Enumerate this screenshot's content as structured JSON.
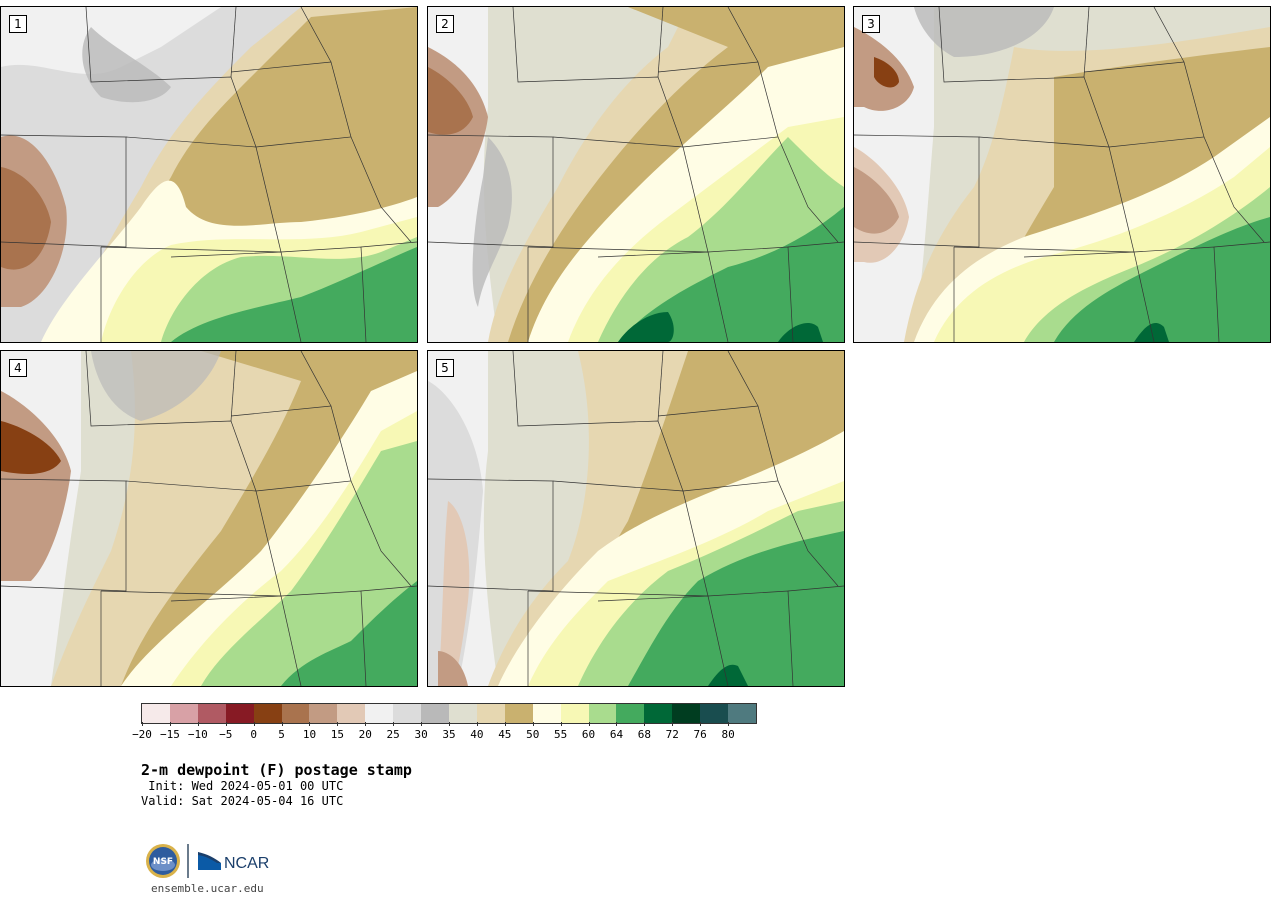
{
  "panels": [
    {
      "label": "1",
      "style": "a"
    },
    {
      "label": "2",
      "style": "b"
    },
    {
      "label": "3",
      "style": "c"
    },
    {
      "label": "4",
      "style": "d"
    },
    {
      "label": "5",
      "style": "e"
    }
  ],
  "colorbar": {
    "colors": [
      "#f6eaea",
      "#d8a1a6",
      "#b05a63",
      "#871a24",
      "#874013",
      "#a9734e",
      "#c29b83",
      "#e2c9b6",
      "#f1f1f1",
      "#dcdcdc",
      "#b9b9b9",
      "#dfdfd0",
      "#e6d7b1",
      "#c9b16f",
      "#fffde5",
      "#f7f8b5",
      "#a9dc8e",
      "#44aa5e",
      "#006837",
      "#003d20",
      "#194d4f",
      "#4f7a7f"
    ],
    "tick_labels": [
      "-20",
      "-15",
      "-10",
      "-5",
      "0",
      "5",
      "10",
      "15",
      "20",
      "25",
      "30",
      "35",
      "40",
      "45",
      "50",
      "55",
      "60",
      "64",
      "68",
      "72",
      "76",
      "80"
    ]
  },
  "title": "2-m dewpoint (F) postage stamp",
  "init_text": " Init: Wed 2024-05-01 00 UTC",
  "valid_text": "Valid: Sat 2024-05-04 16 UTC",
  "logos": {
    "nsf_text": "NSF",
    "ncar_text": "NCAR"
  },
  "site_url": "ensemble.ucar.edu"
}
